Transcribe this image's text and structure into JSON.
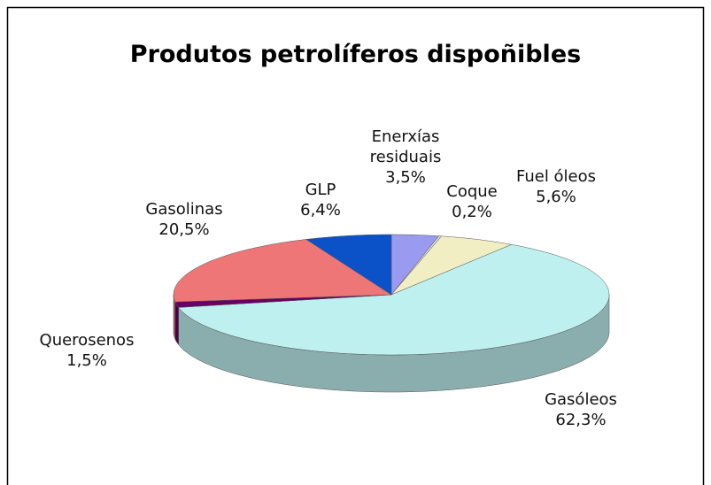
{
  "chart_data": {
    "type": "pie",
    "title": "Produtos petrolíferos dispoñibles",
    "categories": [
      "Enerxías residuais",
      "Coque",
      "Fuel óleos",
      "Gasóleos",
      "Querosenos",
      "Gasolinas",
      "GLP"
    ],
    "values": [
      3.5,
      0.2,
      5.6,
      62.3,
      1.5,
      20.5,
      6.4
    ],
    "value_labels": [
      "3,5%",
      "0,2%",
      "5,6%",
      "62,3%",
      "1,5%",
      "20,5%",
      "6,4%"
    ],
    "colors": [
      "#9a9af0",
      "#d8d8d8",
      "#f2eec4",
      "#bff0f0",
      "#660066",
      "#ee7676",
      "#0b52c8"
    ]
  }
}
